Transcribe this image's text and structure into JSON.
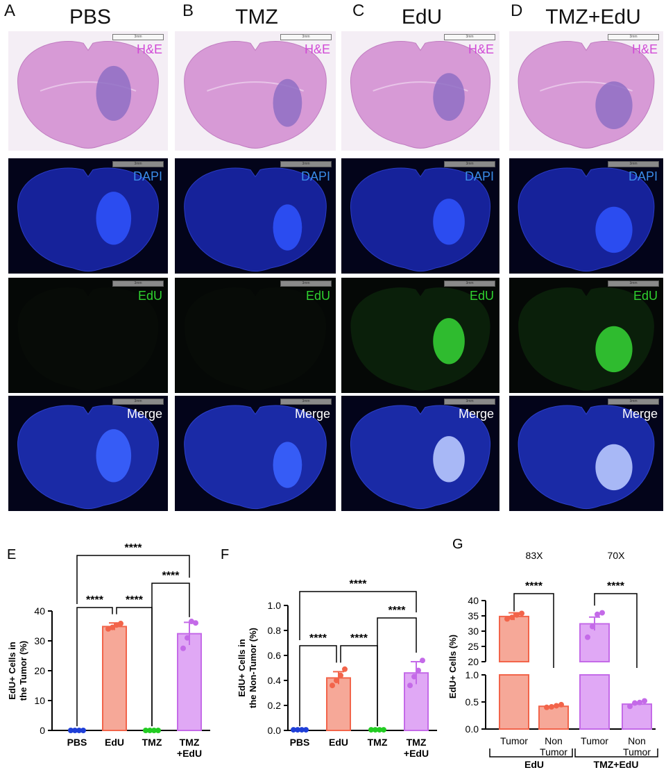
{
  "panels": {
    "A": "A",
    "B": "B",
    "C": "C",
    "D": "D",
    "E": "E",
    "F": "F",
    "G": "G"
  },
  "columns": [
    "PBS",
    "TMZ",
    "EdU",
    "TMZ+EdU"
  ],
  "row_labels": [
    "H&E",
    "DAPI",
    "EdU",
    "Merge"
  ],
  "scale_bar_text": "3mm",
  "colors": {
    "PBS": "#1f3fd8",
    "EdU": "#f2644a",
    "TMZ": "#22cc22",
    "TMZ+EdU": "#c46ae8",
    "edu_bar_fill": "#f6a898",
    "tmzedu_bar_fill": "#e0a8f5",
    "he": "#d14ad6",
    "dapi": "#3a8ce8",
    "edu_label": "#2fd12f"
  },
  "chart_data": [
    {
      "panel": "E",
      "type": "bar",
      "categories": [
        "PBS",
        "EdU",
        "TMZ",
        "TMZ\n+EdU"
      ],
      "ylabel": "EdU+ Cells in\nthe Tumor (%)",
      "ylim": [
        0,
        40
      ],
      "yticks": [
        0,
        10,
        20,
        30,
        40
      ],
      "values": [
        0,
        34.8,
        0,
        32.4
      ],
      "error": [
        0.1,
        1.2,
        0.1,
        3.8
      ],
      "points": [
        [
          0,
          0,
          0,
          0
        ],
        [
          34.0,
          34.5,
          35.3,
          35.8
        ],
        [
          0,
          0,
          0,
          0
        ],
        [
          27.5,
          31.0,
          36.5,
          36.0
        ]
      ],
      "significance": [
        {
          "from": 0,
          "to": 1,
          "label": "****"
        },
        {
          "from": 1,
          "to": 2,
          "label": "****"
        },
        {
          "from": 2,
          "to": 3,
          "label": "****"
        },
        {
          "from": 0,
          "to": 3,
          "label": "****"
        }
      ]
    },
    {
      "panel": "F",
      "type": "bar",
      "categories": [
        "PBS",
        "EdU",
        "TMZ",
        "TMZ\n+EdU"
      ],
      "ylabel": "EdU+ Cells in\nthe Non-Tumor (%)",
      "ylim": [
        0,
        1.0
      ],
      "yticks": [
        "0.0",
        "0.2",
        "0.4",
        "0.6",
        "0.8",
        "1.0"
      ],
      "values": [
        0.005,
        0.42,
        0.005,
        0.46
      ],
      "error": [
        0.002,
        0.05,
        0.002,
        0.09
      ],
      "points": [
        [
          0.005,
          0.005,
          0.005,
          0.005
        ],
        [
          0.36,
          0.4,
          0.44,
          0.49
        ],
        [
          0.005,
          0.005,
          0.005,
          0.005
        ],
        [
          0.36,
          0.43,
          0.48,
          0.56
        ]
      ],
      "significance": [
        {
          "from": 0,
          "to": 1,
          "label": "****"
        },
        {
          "from": 1,
          "to": 2,
          "label": "****"
        },
        {
          "from": 2,
          "to": 3,
          "label": "****"
        },
        {
          "from": 0,
          "to": 3,
          "label": "****"
        }
      ]
    },
    {
      "panel": "G",
      "type": "bar",
      "categories": [
        "Tumor",
        "Non\nTumor",
        "Tumor",
        "Non\nTumor"
      ],
      "groups": [
        "EdU",
        "TMZ+EdU"
      ],
      "ylabel": "EdU+ Cells (%)",
      "broken_axis": {
        "lower": [
          0,
          1.0
        ],
        "upper": [
          20,
          40
        ]
      },
      "yticks_lower": [
        "0.0",
        "0.5",
        "1.0"
      ],
      "yticks_upper": [
        "20",
        "25",
        "30",
        "35",
        "40"
      ],
      "values": [
        34.8,
        0.42,
        32.4,
        0.46
      ],
      "error": [
        1.2,
        0.03,
        2.2,
        0.06
      ],
      "points": [
        [
          34.0,
          34.5,
          35.3,
          35.8
        ],
        [
          0.4,
          0.41,
          0.43,
          0.45
        ],
        [
          28.0,
          31.5,
          35.5,
          36.0
        ],
        [
          0.42,
          0.48,
          0.49,
          0.52
        ]
      ],
      "fold_changes": [
        "83X",
        "70X"
      ],
      "significance": [
        {
          "from": 0,
          "to": 1,
          "label": "****"
        },
        {
          "from": 2,
          "to": 3,
          "label": "****"
        }
      ]
    }
  ]
}
